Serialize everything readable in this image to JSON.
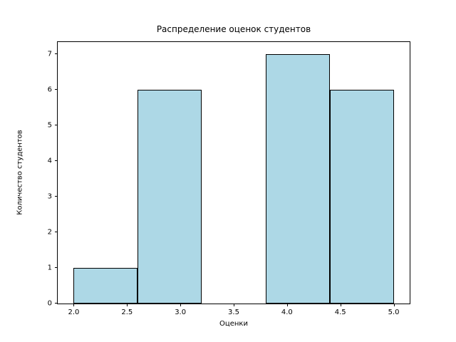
{
  "chart_data": {
    "type": "bar",
    "subtype": "histogram",
    "title": "Распределение оценок студентов",
    "xlabel": "Оценки",
    "ylabel": "Количество студентов",
    "bin_edges": [
      2.0,
      2.6,
      3.2,
      3.8,
      4.4,
      5.0
    ],
    "counts": [
      1,
      6,
      0,
      7,
      6
    ],
    "x_ticks": [
      2.0,
      2.5,
      3.0,
      3.5,
      4.0,
      4.5,
      5.0
    ],
    "x_tick_labels": [
      "2.0",
      "2.5",
      "3.0",
      "3.5",
      "4.0",
      "4.5",
      "5.0"
    ],
    "y_ticks": [
      0,
      1,
      2,
      3,
      4,
      5,
      6,
      7
    ],
    "y_tick_labels": [
      "0",
      "1",
      "2",
      "3",
      "4",
      "5",
      "6",
      "7"
    ],
    "xlim": [
      1.85,
      5.15
    ],
    "ylim": [
      0,
      7.35
    ],
    "bar_color": "#add8e6",
    "bar_edge_color": "#000000",
    "background_color": "#ffffff",
    "grid": false,
    "legend": null
  }
}
